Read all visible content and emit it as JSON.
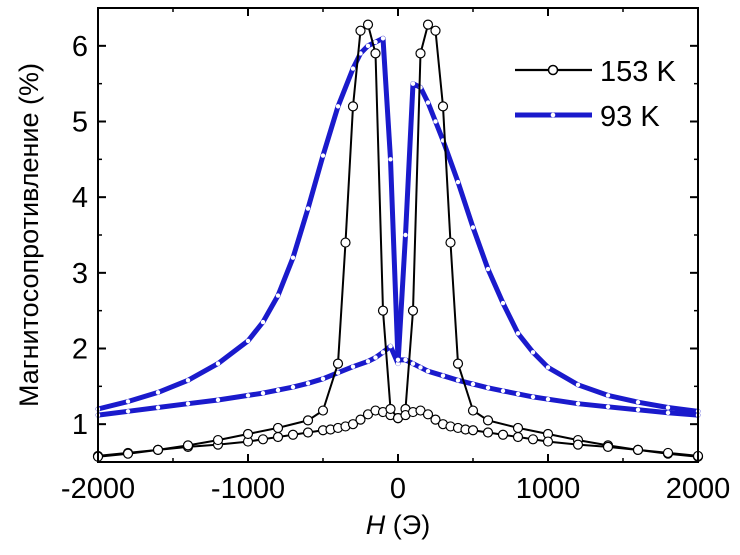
{
  "chart_data": {
    "type": "line",
    "xlabel_symbol": "H",
    "xlabel_unit": " (Э)",
    "ylabel": "Магнитосопротивление (%)",
    "xlim": [
      -2000,
      2000
    ],
    "ylim": [
      0.5,
      6.5
    ],
    "x_ticks": [
      -2000,
      -1000,
      0,
      1000,
      2000
    ],
    "x_tick_labels": [
      "-2000",
      "-1000",
      "0",
      "1000",
      "2000"
    ],
    "y_ticks": [
      1,
      2,
      3,
      4,
      5,
      6
    ],
    "y_tick_labels": [
      "1",
      "2",
      "3",
      "4",
      "5",
      "6"
    ],
    "legend_position": "top-right",
    "series": [
      {
        "name": "153 K",
        "color": "#000000",
        "marker": "open-circle",
        "branches": [
          {
            "x": [
              -2000,
              -1800,
              -1600,
              -1400,
              -1200,
              -1000,
              -900,
              -800,
              -700,
              -600,
              -500,
              -450,
              -400,
              -350,
              -300,
              -250,
              -200,
              -150,
              -100,
              -50,
              0,
              50,
              100,
              150,
              200,
              250,
              300,
              350,
              400,
              500,
              600,
              800,
              1000,
              1200,
              1400,
              1600,
              1800,
              2000
            ],
            "y": [
              0.58,
              0.62,
              0.66,
              0.7,
              0.73,
              0.77,
              0.8,
              0.83,
              0.86,
              0.89,
              0.92,
              0.93,
              0.95,
              0.97,
              1.0,
              1.06,
              1.13,
              1.18,
              1.16,
              1.12,
              1.08,
              1.2,
              2.5,
              5.9,
              6.28,
              6.2,
              5.2,
              3.4,
              1.8,
              1.18,
              1.05,
              0.95,
              0.87,
              0.79,
              0.72,
              0.66,
              0.61,
              0.57
            ]
          },
          {
            "x": [
              -2000,
              -1800,
              -1600,
              -1400,
              -1200,
              -1000,
              -800,
              -600,
              -500,
              -400,
              -350,
              -300,
              -250,
              -200,
              -150,
              -100,
              -50,
              0,
              50,
              100,
              150,
              200,
              250,
              300,
              350,
              400,
              450,
              500,
              600,
              700,
              800,
              900,
              1000,
              1200,
              1400,
              1600,
              1800,
              2000
            ],
            "y": [
              0.57,
              0.61,
              0.66,
              0.72,
              0.79,
              0.87,
              0.95,
              1.05,
              1.18,
              1.8,
              3.4,
              5.2,
              6.2,
              6.28,
              5.9,
              2.5,
              1.2,
              1.08,
              1.12,
              1.16,
              1.18,
              1.13,
              1.06,
              1.0,
              0.97,
              0.95,
              0.93,
              0.92,
              0.89,
              0.86,
              0.83,
              0.8,
              0.77,
              0.73,
              0.7,
              0.66,
              0.62,
              0.58
            ]
          }
        ]
      },
      {
        "name": "93 K",
        "color": "#1a1acc",
        "marker": "small-dot",
        "branches": [
          {
            "x": [
              -2000,
              -1800,
              -1600,
              -1400,
              -1200,
              -1000,
              -900,
              -800,
              -700,
              -600,
              -500,
              -400,
              -300,
              -200,
              -150,
              -100,
              -50,
              0,
              50,
              100,
              150,
              200,
              250,
              300,
              400,
              500,
              600,
              700,
              800,
              900,
              1000,
              1200,
              1400,
              1600,
              1800,
              2000
            ],
            "y": [
              1.12,
              1.17,
              1.22,
              1.27,
              1.32,
              1.38,
              1.41,
              1.45,
              1.49,
              1.54,
              1.6,
              1.68,
              1.76,
              1.83,
              1.88,
              1.95,
              2.03,
              1.8,
              3.5,
              5.5,
              5.45,
              5.25,
              5.0,
              4.75,
              4.2,
              3.6,
              3.05,
              2.6,
              2.2,
              1.95,
              1.75,
              1.52,
              1.38,
              1.29,
              1.22,
              1.17
            ]
          },
          {
            "x": [
              -2000,
              -1800,
              -1600,
              -1400,
              -1200,
              -1000,
              -900,
              -800,
              -700,
              -600,
              -500,
              -400,
              -300,
              -250,
              -200,
              -150,
              -100,
              -50,
              0,
              50,
              100,
              150,
              200,
              300,
              400,
              500,
              600,
              700,
              800,
              900,
              1000,
              1200,
              1400,
              1600,
              1800,
              2000
            ],
            "y": [
              1.2,
              1.3,
              1.42,
              1.58,
              1.8,
              2.1,
              2.35,
              2.7,
              3.2,
              3.85,
              4.55,
              5.2,
              5.7,
              5.9,
              6.0,
              6.05,
              6.1,
              4.5,
              1.85,
              1.85,
              1.8,
              1.75,
              1.7,
              1.64,
              1.58,
              1.53,
              1.48,
              1.44,
              1.4,
              1.36,
              1.33,
              1.27,
              1.23,
              1.19,
              1.15,
              1.12
            ]
          }
        ]
      }
    ]
  }
}
